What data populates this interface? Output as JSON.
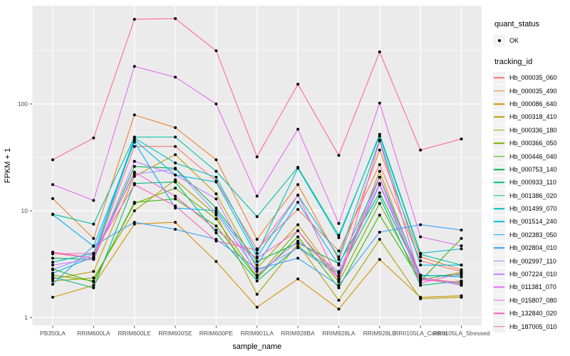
{
  "legend": {
    "quant_status": {
      "title": "quant_status",
      "items": [
        {
          "label": "OK",
          "symbol": "black-point"
        }
      ]
    },
    "tracking_id": {
      "title": "tracking_id"
    }
  },
  "chart_data": {
    "type": "line",
    "title": "",
    "xlabel": "sample_name",
    "ylabel": "FPKM + 1",
    "x_type": "categorical",
    "y_scale": "log10",
    "y_ticks": [
      1,
      10,
      100
    ],
    "y_tick_labels": [
      "1",
      "10",
      "100"
    ],
    "y_minor_gridlines": [
      3.162,
      31.62,
      316.2
    ],
    "ylim": [
      1,
      830
    ],
    "grid": "on",
    "legend_position": "right",
    "panel_bg": "#EBEBEB",
    "grid_color": "#FFFFFF",
    "tick_color": "#333333",
    "tick_label_color": "#4D4D4D",
    "point_color": "#000000",
    "categories": [
      "PB350LA",
      "RRIM600LA",
      "RRIM600LE",
      "RRIM600SE",
      "RRIM600PE",
      "RRIM901LA",
      "RRIM928BA",
      "RRIM928LA",
      "RRIM928LE",
      "RRII105LA_Control",
      "RRII105LA_Stressed"
    ],
    "series": [
      {
        "name": "Hb_000035_060",
        "color": "#F8766D",
        "values": [
          4.0,
          3.6,
          40,
          40,
          19,
          4.4,
          10.3,
          4.2,
          27,
          3.4,
          2.7
        ]
      },
      {
        "name": "Hb_000035_490",
        "color": "#EA8331",
        "values": [
          13,
          5.5,
          79,
          60,
          30,
          5.4,
          17.6,
          3.5,
          37,
          3.7,
          2.8
        ]
      },
      {
        "name": "Hb_000086_640",
        "color": "#D89000",
        "values": [
          1.55,
          2.0,
          7.5,
          7.8,
          3.35,
          1.25,
          2.3,
          1.2,
          3.5,
          1.55,
          1.6
        ]
      },
      {
        "name": "Hb_000318_410",
        "color": "#C09B00",
        "values": [
          2.3,
          2.7,
          21,
          33.5,
          14.4,
          2.9,
          7.4,
          2.3,
          23.4,
          2.35,
          2.1
        ]
      },
      {
        "name": "Hb_000336_180",
        "color": "#A3A500",
        "values": [
          2.2,
          2.35,
          10,
          19.5,
          9.1,
          1.65,
          4.9,
          1.45,
          5.4,
          1.5,
          1.55
        ]
      },
      {
        "name": "Hb_000366_050",
        "color": "#7CAE00",
        "values": [
          2.5,
          2.2,
          11.7,
          16.3,
          8.4,
          2.4,
          6.5,
          2.15,
          11.7,
          2.25,
          2.65
        ]
      },
      {
        "name": "Hb_000446_040",
        "color": "#39B600",
        "values": [
          2.85,
          2.15,
          12,
          12.9,
          7.2,
          2.35,
          5.7,
          1.9,
          9.1,
          2.2,
          5.5
        ]
      },
      {
        "name": "Hb_000753_140",
        "color": "#00BB4E",
        "values": [
          3.6,
          3.5,
          26,
          25,
          10.6,
          3.35,
          5.0,
          3.2,
          14.7,
          2.45,
          2.5
        ]
      },
      {
        "name": "Hb_000933_110",
        "color": "#00BF7D",
        "values": [
          2.4,
          1.9,
          18,
          18.6,
          6.2,
          2.2,
          4.6,
          2.6,
          13.6,
          2.0,
          2.2
        ]
      },
      {
        "name": "Hb_001386_020",
        "color": "#00C1A3",
        "values": [
          9.3,
          7.5,
          49,
          49,
          23.4,
          8.8,
          25.5,
          5.9,
          50,
          3.9,
          3.1
        ]
      },
      {
        "name": "Hb_001499_070",
        "color": "#00BFC4",
        "values": [
          3.3,
          4.0,
          48,
          28,
          20.6,
          4.0,
          25,
          5.6,
          52,
          4.0,
          4.4
        ]
      },
      {
        "name": "Hb_001514_240",
        "color": "#00BAE0",
        "values": [
          2.6,
          3.7,
          46,
          21.6,
          18.6,
          3.7,
          14,
          3.7,
          46,
          3.1,
          3.1
        ]
      },
      {
        "name": "Hb_002383_050",
        "color": "#00B0F6",
        "values": [
          9.2,
          4.65,
          44,
          10.6,
          10,
          3.1,
          12,
          3.1,
          20.6,
          2.5,
          2.4
        ]
      },
      {
        "name": "Hb_002804_010",
        "color": "#35A2FF",
        "values": [
          2.05,
          4.7,
          7.8,
          6.7,
          5.4,
          2.85,
          3.6,
          2.0,
          6.3,
          7.4,
          6.6
        ]
      },
      {
        "name": "Hb_002997_110",
        "color": "#9590FF",
        "values": [
          2.8,
          3.9,
          22,
          24.6,
          9.5,
          2.7,
          4.5,
          2.45,
          17.5,
          2.3,
          2.05
        ]
      },
      {
        "name": "Hb_007224_010",
        "color": "#C77CFF",
        "values": [
          3.1,
          3.55,
          29,
          21.6,
          12.9,
          2.5,
          5.2,
          2.7,
          18,
          2.4,
          2.0
        ]
      },
      {
        "name": "Hb_011381_070",
        "color": "#E76BF3",
        "values": [
          17.6,
          12.5,
          225,
          178,
          100,
          13.7,
          58,
          7.6,
          102,
          5.7,
          4.7
        ]
      },
      {
        "name": "Hb_015807_080",
        "color": "#FA62DB",
        "values": [
          4.1,
          3.6,
          23,
          13.7,
          6.6,
          3.6,
          6.5,
          2.3,
          20.6,
          2.1,
          2.6
        ]
      },
      {
        "name": "Hb_132840_020",
        "color": "#FF62BC",
        "values": [
          3.95,
          4.0,
          17.5,
          11.1,
          5.2,
          4.3,
          14,
          2.2,
          45,
          2.25,
          2.15
        ]
      },
      {
        "name": "Hb_187005_010",
        "color": "#FF6A98",
        "values": [
          30,
          48,
          620,
          630,
          315,
          32,
          153,
          33,
          307,
          37,
          47
        ]
      }
    ]
  }
}
